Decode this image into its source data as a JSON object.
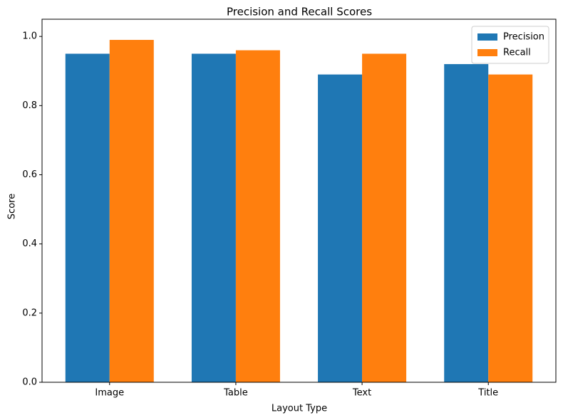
{
  "chart_data": {
    "type": "bar",
    "title": "Precision and Recall Scores",
    "x_label": "Layout Type",
    "y_label": "Score",
    "categories": [
      "Image",
      "Table",
      "Text",
      "Title"
    ],
    "series": [
      {
        "name": "Precision",
        "color": "#1f77b4",
        "values": [
          0.95,
          0.95,
          0.89,
          0.92
        ]
      },
      {
        "name": "Recall",
        "color": "#ff7f0e",
        "values": [
          0.99,
          0.96,
          0.95,
          0.89
        ]
      }
    ],
    "ylim": [
      0,
      1.0395
    ],
    "yticks": [
      {
        "value": 0,
        "label": "0.0"
      },
      0.2,
      0.4,
      0.6,
      0.8,
      {
        "value": 1,
        "label": "1.0"
      }
    ],
    "legend": "upper right"
  }
}
